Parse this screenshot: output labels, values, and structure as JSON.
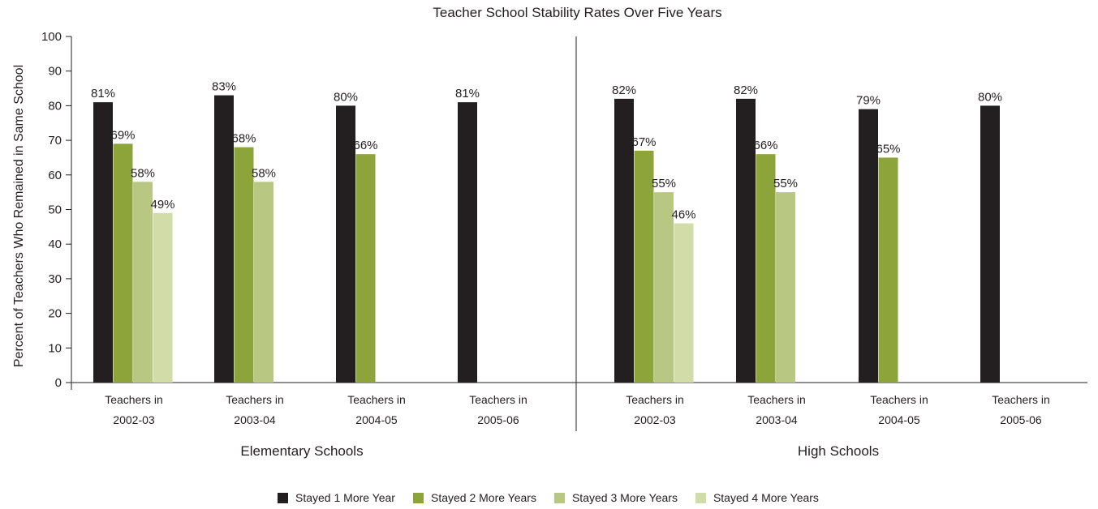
{
  "chart_data": {
    "type": "bar",
    "title": "Teacher School Stability Rates Over Five Years",
    "ylabel": "Percent of Teachers Who Remained in Same School",
    "ylim": [
      0,
      100
    ],
    "yticks": [
      "0",
      "10",
      "20",
      "30",
      "40",
      "50",
      "60",
      "70",
      "80",
      "90",
      "100"
    ],
    "series": [
      {
        "name": "Stayed 1 More Year",
        "color": "#231f20"
      },
      {
        "name": "Stayed 2 More Years",
        "color": "#8da43b"
      },
      {
        "name": "Stayed 3 More Years",
        "color": "#b8c882"
      },
      {
        "name": "Stayed 4 More Years",
        "color": "#d1dca9"
      }
    ],
    "groups": [
      {
        "name": "Elementary Schools",
        "categories": [
          {
            "line1": "Teachers in",
            "line2": "2002-03",
            "values": [
              81,
              69,
              58,
              49
            ],
            "labels": [
              "81%",
              "69%",
              "58%",
              "49%"
            ]
          },
          {
            "line1": "Teachers in",
            "line2": "2003-04",
            "values": [
              83,
              68,
              58
            ],
            "labels": [
              "83%",
              "68%",
              "58%"
            ]
          },
          {
            "line1": "Teachers in",
            "line2": "2004-05",
            "values": [
              80,
              66
            ],
            "labels": [
              "80%",
              "66%"
            ]
          },
          {
            "line1": "Teachers in",
            "line2": "2005-06",
            "values": [
              81
            ],
            "labels": [
              "81%"
            ]
          }
        ]
      },
      {
        "name": "High Schools",
        "categories": [
          {
            "line1": "Teachers in",
            "line2": "2002-03",
            "values": [
              82,
              67,
              55,
              46
            ],
            "labels": [
              "82%",
              "67%",
              "55%",
              "46%"
            ]
          },
          {
            "line1": "Teachers in",
            "line2": "2003-04",
            "values": [
              82,
              66,
              55
            ],
            "labels": [
              "82%",
              "66%",
              "55%"
            ]
          },
          {
            "line1": "Teachers in",
            "line2": "2004-05",
            "values": [
              79,
              65
            ],
            "labels": [
              "79%",
              "65%"
            ]
          },
          {
            "line1": "Teachers in",
            "line2": "2005-06",
            "values": [
              80
            ],
            "labels": [
              "80%"
            ]
          }
        ]
      }
    ],
    "legend_position": "bottom"
  }
}
